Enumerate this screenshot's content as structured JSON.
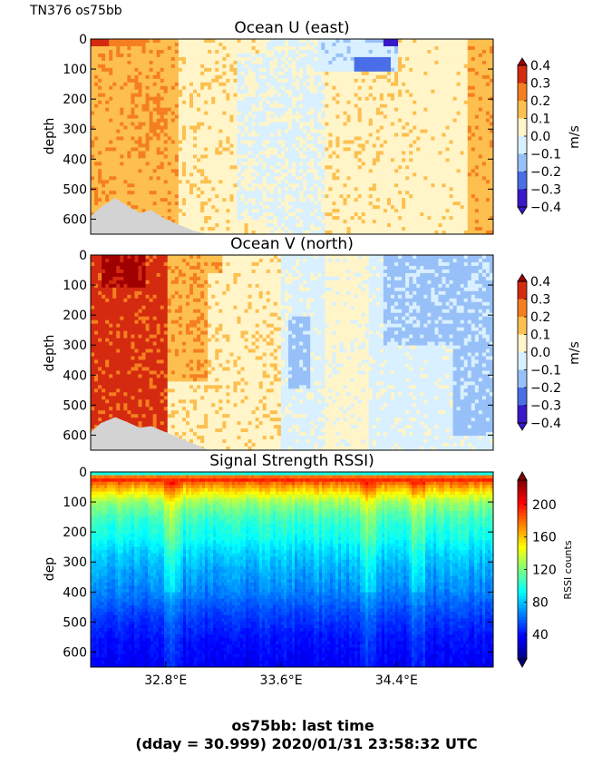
{
  "figure": {
    "corner_label": "TN376 os75bb",
    "footer_line1": "os75bb: last time",
    "footer_line2": "(dday = 30.999) 2020/01/31 23:58:32 UTC"
  },
  "chart_data": [
    {
      "type": "heatmap",
      "title": "Ocean U (east)",
      "xlabel": "",
      "ylabel": "depth",
      "ylim": [
        650,
        0
      ],
      "yticks": [
        0,
        100,
        200,
        300,
        400,
        500,
        600
      ],
      "xlim": [
        32.28,
        35.07
      ],
      "xticks": [],
      "colorbar": {
        "label": "m/s",
        "range": [
          -0.4,
          0.4
        ],
        "ticks": [
          "0.4",
          "0.3",
          "0.2",
          "0.1",
          "0.0",
          "−0.1",
          "−0.2",
          "−0.3",
          "−0.4"
        ],
        "levels": [
          -0.45,
          -0.35,
          -0.25,
          -0.15,
          -0.05,
          0.05,
          0.15,
          0.25,
          0.35,
          0.45
        ],
        "colors": [
          "#3818c8",
          "#4a6ee8",
          "#98c0f8",
          "#d8f0ff",
          "#fff5c8",
          "#fdbf4f",
          "#f57f20",
          "#d42a10",
          "#a00000"
        ]
      },
      "bathymetry": {
        "color": "#d3d3d3",
        "x": [
          32.28,
          32.35,
          32.45,
          32.55,
          32.62,
          32.7,
          32.8,
          32.9,
          33.0,
          33.1
        ],
        "depth": [
          590,
          560,
          530,
          560,
          580,
          570,
          600,
          620,
          640,
          650
        ]
      },
      "features": [
        {
          "x0": 32.28,
          "x1": 32.9,
          "d0": 0,
          "d1": 650,
          "v": 0.12
        },
        {
          "x0": 32.28,
          "x1": 32.4,
          "d0": 0,
          "d1": 30,
          "v": 0.3
        },
        {
          "x0": 32.4,
          "x1": 32.65,
          "d0": 0,
          "d1": 20,
          "v": 0.2
        },
        {
          "x0": 32.9,
          "x1": 33.5,
          "d0": 0,
          "d1": 650,
          "v": 0.02
        },
        {
          "x0": 33.3,
          "x1": 33.5,
          "d0": 50,
          "d1": 600,
          "v": -0.06
        },
        {
          "x0": 33.5,
          "x1": 33.9,
          "d0": 0,
          "d1": 650,
          "v": -0.06
        },
        {
          "x0": 33.9,
          "x1": 34.55,
          "d0": 0,
          "d1": 650,
          "v": 0.02
        },
        {
          "x0": 33.85,
          "x1": 34.4,
          "d0": 0,
          "d1": 110,
          "v": -0.12
        },
        {
          "x0": 34.1,
          "x1": 34.35,
          "d0": 60,
          "d1": 110,
          "v": -0.3
        },
        {
          "x0": 34.3,
          "x1": 34.4,
          "d0": 0,
          "d1": 30,
          "v": -0.4
        },
        {
          "x0": 34.55,
          "x1": 34.9,
          "d0": 0,
          "d1": 650,
          "v": 0.01
        },
        {
          "x0": 34.9,
          "x1": 35.07,
          "d0": 0,
          "d1": 650,
          "v": 0.12
        },
        {
          "x0": 32.55,
          "x1": 32.8,
          "d0": 100,
          "d1": 380,
          "v": 0.14
        }
      ]
    },
    {
      "type": "heatmap",
      "title": "Ocean V (north)",
      "xlabel": "",
      "ylabel": "depth",
      "ylim": [
        650,
        0
      ],
      "yticks": [
        0,
        100,
        200,
        300,
        400,
        500,
        600
      ],
      "xlim": [
        32.28,
        35.07
      ],
      "xticks": [],
      "colorbar": {
        "label": "m/s",
        "range": [
          -0.4,
          0.4
        ],
        "ticks": [
          "0.4",
          "0.3",
          "0.2",
          "0.1",
          "0.0",
          "−0.1",
          "−0.2",
          "−0.3",
          "−0.4"
        ],
        "levels": [
          -0.45,
          -0.35,
          -0.25,
          -0.15,
          -0.05,
          0.05,
          0.15,
          0.25,
          0.35,
          0.45
        ],
        "colors": [
          "#3818c8",
          "#4a6ee8",
          "#98c0f8",
          "#d8f0ff",
          "#fff5c8",
          "#fdbf4f",
          "#f57f20",
          "#d42a10",
          "#a00000"
        ]
      },
      "bathymetry": {
        "color": "#d3d3d3",
        "x": [
          32.28,
          32.35,
          32.45,
          32.55,
          32.62,
          32.7,
          32.8,
          32.9,
          33.0,
          33.1
        ],
        "depth": [
          590,
          560,
          540,
          560,
          575,
          570,
          590,
          610,
          630,
          650
        ]
      },
      "features": [
        {
          "x0": 32.28,
          "x1": 32.8,
          "d0": 0,
          "d1": 650,
          "v": 0.28
        },
        {
          "x0": 32.35,
          "x1": 32.65,
          "d0": 0,
          "d1": 110,
          "v": 0.38
        },
        {
          "x0": 32.8,
          "x1": 33.2,
          "d0": 0,
          "d1": 650,
          "v": 0.02
        },
        {
          "x0": 32.8,
          "x1": 33.1,
          "d0": 0,
          "d1": 420,
          "v": 0.13
        },
        {
          "x0": 33.1,
          "x1": 33.5,
          "d0": 0,
          "d1": 60,
          "v": 0.13
        },
        {
          "x0": 33.2,
          "x1": 33.6,
          "d0": 0,
          "d1": 650,
          "v": 0.02
        },
        {
          "x0": 33.6,
          "x1": 35.07,
          "d0": 0,
          "d1": 650,
          "v": -0.08
        },
        {
          "x0": 33.65,
          "x1": 33.8,
          "d0": 200,
          "d1": 450,
          "v": -0.18
        },
        {
          "x0": 34.3,
          "x1": 35.07,
          "d0": 0,
          "d1": 300,
          "v": -0.17
        },
        {
          "x0": 34.8,
          "x1": 35.07,
          "d0": 300,
          "d1": 600,
          "v": -0.18
        },
        {
          "x0": 33.9,
          "x1": 34.2,
          "d0": 0,
          "d1": 650,
          "v": -0.02
        }
      ]
    },
    {
      "type": "heatmap",
      "title": "Signal Strength RSSI)",
      "xlabel": "",
      "ylabel": "dep",
      "ylim": [
        650,
        0
      ],
      "yticks": [
        0,
        100,
        200,
        300,
        400,
        500,
        600
      ],
      "xlim": [
        32.28,
        35.07
      ],
      "xticks": [
        "32.8°E",
        "33.6°E",
        "34.4°E"
      ],
      "xtick_values": [
        32.8,
        33.6,
        34.4
      ],
      "colorbar": {
        "label": "RSSI counts",
        "range": [
          10,
          230
        ],
        "ticks": [
          "200",
          "160",
          "120",
          "80",
          "40"
        ],
        "tick_values": [
          200,
          160,
          120,
          80,
          40
        ]
      },
      "depth_profile": {
        "depth": [
          0,
          20,
          40,
          70,
          100,
          140,
          180,
          220,
          260,
          320,
          400,
          480,
          560,
          650
        ],
        "rssi": [
          60,
          205,
          175,
          150,
          125,
          110,
          100,
          95,
          85,
          75,
          65,
          50,
          40,
          35
        ]
      }
    }
  ]
}
